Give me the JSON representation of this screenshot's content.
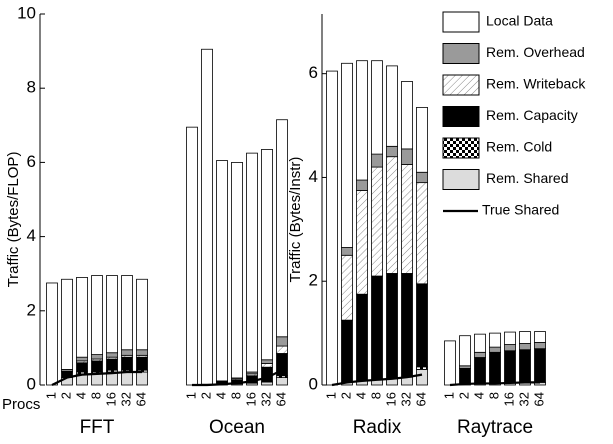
{
  "chart_data": [
    {
      "type": "bar",
      "stacked": true,
      "y_label": "Traffic (Bytes/FLOP)",
      "x_label": "Procs",
      "ylim": [
        0,
        10
      ],
      "yticks": [
        0,
        2,
        4,
        6,
        8,
        10
      ],
      "groups": [
        {
          "label": "FFT",
          "categories": [
            "1",
            "2",
            "4",
            "8",
            "16",
            "32",
            "64"
          ],
          "series": [
            {
              "values": [
                2.75,
                2.43,
                2.15,
                2.13,
                2.08,
                2.0,
                1.9
              ]
            },
            {
              "values": [
                0,
                0.05,
                0.1,
                0.12,
                0.12,
                0.15,
                0.15
              ]
            },
            {
              "values": [
                0,
                0.02,
                0.05,
                0.05,
                0.05,
                0.05,
                0.05
              ]
            },
            {
              "values": [
                0,
                0.15,
                0.25,
                0.3,
                0.3,
                0.35,
                0.35
              ]
            },
            {
              "values": [
                0,
                0,
                0.05,
                0.05,
                0.05,
                0.05,
                0.05
              ]
            },
            {
              "values": [
                0,
                0.2,
                0.3,
                0.3,
                0.35,
                0.35,
                0.35
              ]
            },
            {
              "values": [
                0,
                0.2,
                0.28,
                0.3,
                0.32,
                0.35,
                0.35
              ]
            }
          ]
        },
        {
          "label": "Ocean",
          "categories": [
            "1",
            "2",
            "4",
            "8",
            "16",
            "32",
            "64"
          ],
          "series": [
            {
              "values": [
                6.95,
                9.03,
                5.94,
                5.81,
                5.9,
                5.67,
                5.85
              ]
            },
            {
              "values": [
                0,
                0,
                0.02,
                0.03,
                0.05,
                0.1,
                0.25
              ]
            },
            {
              "values": [
                0,
                0,
                0.02,
                0.03,
                0.05,
                0.1,
                0.2
              ]
            },
            {
              "values": [
                0,
                0.02,
                0.05,
                0.1,
                0.2,
                0.4,
                0.6
              ]
            },
            {
              "values": [
                0,
                0,
                0,
                0,
                0,
                0,
                0.05
              ]
            },
            {
              "values": [
                0,
                0,
                0.02,
                0.03,
                0.05,
                0.08,
                0.2
              ]
            },
            {
              "values": [
                0,
                0,
                0.02,
                0.05,
                0.1,
                0.2,
                0.4
              ]
            }
          ]
        }
      ]
    },
    {
      "type": "bar",
      "stacked": true,
      "y_label": "Traffic (Bytes/Instr)",
      "ylim": [
        0,
        7.15
      ],
      "yticks": [
        0,
        2,
        4,
        6
      ],
      "groups": [
        {
          "label": "Radix",
          "categories": [
            "1",
            "2",
            "4",
            "8",
            "16",
            "32",
            "64"
          ],
          "series": [
            {
              "values": [
                6.05,
                3.55,
                2.3,
                1.8,
                1.55,
                1.3,
                1.25
              ]
            },
            {
              "values": [
                0,
                0.15,
                0.2,
                0.25,
                0.2,
                0.3,
                0.2
              ]
            },
            {
              "values": [
                0,
                1.25,
                2.0,
                2.1,
                2.25,
                2.1,
                1.95
              ]
            },
            {
              "values": [
                0,
                1.2,
                1.67,
                2.0,
                2.03,
                2.0,
                1.6
              ]
            },
            {
              "values": [
                0,
                0,
                0,
                0,
                0,
                0,
                0.05
              ]
            },
            {
              "values": [
                0,
                0.05,
                0.08,
                0.1,
                0.12,
                0.15,
                0.3
              ]
            },
            {
              "values": [
                0,
                0.05,
                0.08,
                0.1,
                0.12,
                0.15,
                0.2
              ]
            }
          ]
        },
        {
          "label": "Raytrace",
          "categories": [
            "1",
            "2",
            "4",
            "8",
            "16",
            "32",
            "64"
          ],
          "series": [
            {
              "values": [
                0.85,
                0.58,
                0.35,
                0.27,
                0.24,
                0.23,
                0.21
              ]
            },
            {
              "values": [
                0,
                0.05,
                0.1,
                0.1,
                0.12,
                0.12,
                0.12
              ]
            },
            {
              "values": [
                0,
                0,
                0,
                0,
                0,
                0,
                0
              ]
            },
            {
              "values": [
                0,
                0.3,
                0.5,
                0.6,
                0.62,
                0.63,
                0.65
              ]
            },
            {
              "values": [
                0,
                0,
                0,
                0,
                0,
                0,
                0
              ]
            },
            {
              "values": [
                0,
                0.02,
                0.03,
                0.03,
                0.04,
                0.05,
                0.05
              ]
            },
            {
              "values": [
                0,
                0.02,
                0.03,
                0.03,
                0.04,
                0.05,
                0.05
              ]
            }
          ]
        }
      ]
    }
  ],
  "legend": [
    {
      "name": "Local Data",
      "color": "#ffffff"
    },
    {
      "name": "Rem. Overhead",
      "color": "#9a9a9a"
    },
    {
      "name": "Rem. Writeback",
      "color": "#ffffff",
      "pattern": "hatch"
    },
    {
      "name": "Rem. Capacity",
      "color": "#000000"
    },
    {
      "name": "Rem. Cold",
      "color": "#000000",
      "pattern": "checker"
    },
    {
      "name": "Rem. Shared",
      "color": "#dcdcdc"
    },
    {
      "name": "True Shared",
      "color": "#000000",
      "mark": "line"
    }
  ]
}
